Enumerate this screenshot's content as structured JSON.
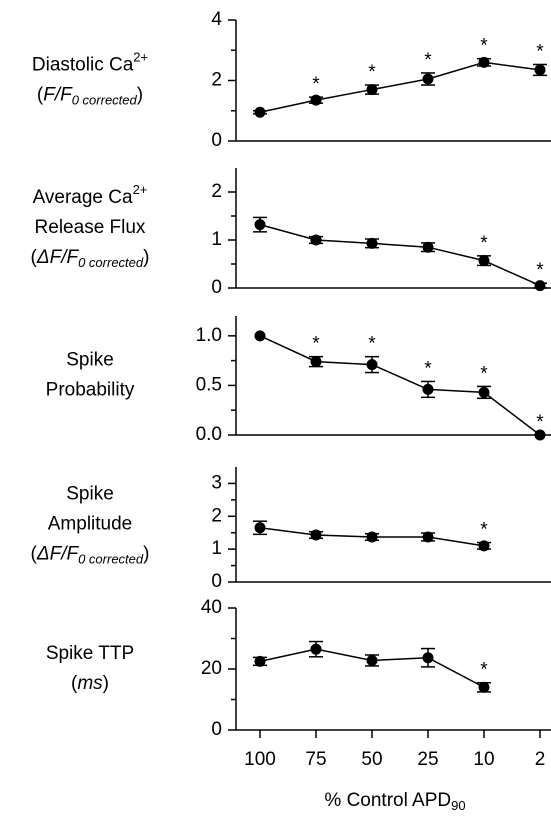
{
  "chart_data": [
    {
      "type": "line",
      "color": "#000000",
      "ylabel": [
        [
          {
            "text": "Diastolic Ca"
          },
          {
            "text": "2+",
            "style": "sup"
          }
        ],
        [
          {
            "text": "("
          },
          {
            "text": "F/F",
            "style": "italic"
          },
          {
            "text": "0 corrected",
            "style": "sub-italic"
          },
          {
            "text": ")"
          }
        ]
      ],
      "categories": [
        "100",
        "75",
        "50",
        "25",
        "10",
        "2"
      ],
      "values": [
        0.95,
        1.35,
        1.7,
        2.05,
        2.6,
        2.35
      ],
      "errors": [
        0.05,
        0.1,
        0.15,
        0.2,
        0.12,
        0.18
      ],
      "annotations": [
        null,
        "*",
        "*",
        "*",
        "*",
        "*"
      ],
      "ylim": [
        0,
        4
      ],
      "yticks": [
        0,
        2,
        4
      ],
      "yminor": [
        1,
        3
      ]
    },
    {
      "type": "line",
      "color": "#000000",
      "ylabel": [
        [
          {
            "text": "Average Ca"
          },
          {
            "text": "2+",
            "style": "sup"
          }
        ],
        [
          {
            "text": "Release Flux"
          }
        ],
        [
          {
            "text": "("
          },
          {
            "text": "ΔF/F",
            "style": "italic"
          },
          {
            "text": "0 corrected",
            "style": "sub-italic"
          },
          {
            "text": ")"
          }
        ]
      ],
      "categories": [
        "100",
        "75",
        "50",
        "25",
        "10",
        "2"
      ],
      "values": [
        1.32,
        1.0,
        0.93,
        0.85,
        0.57,
        0.05
      ],
      "errors": [
        0.15,
        0.07,
        0.09,
        0.09,
        0.1,
        0.05
      ],
      "annotations": [
        null,
        null,
        null,
        null,
        "*",
        "*"
      ],
      "ylim": [
        0,
        2.5
      ],
      "yticks": [
        0,
        1,
        2
      ],
      "yminor": [
        0.5,
        1.5
      ]
    },
    {
      "type": "line",
      "color": "#000000",
      "ylabel": [
        [
          {
            "text": "Spike"
          }
        ],
        [
          {
            "text": "Probability"
          }
        ]
      ],
      "categories": [
        "100",
        "75",
        "50",
        "25",
        "10",
        "2"
      ],
      "values": [
        1.0,
        0.74,
        0.71,
        0.46,
        0.43,
        0.0
      ],
      "errors": [
        0,
        0.05,
        0.08,
        0.08,
        0.06,
        0
      ],
      "annotations": [
        null,
        "*",
        "*",
        "*",
        "*",
        "*"
      ],
      "ylim": [
        0,
        1.2
      ],
      "yticks": [
        {
          "value": 0,
          "label": "0.0"
        },
        {
          "value": 0.5,
          "label": "0.5"
        },
        {
          "value": 1,
          "label": "1.0"
        }
      ],
      "yminor": [
        0.25,
        0.75
      ]
    },
    {
      "type": "line",
      "color": "#000000",
      "ylabel": [
        [
          {
            "text": "Spike"
          }
        ],
        [
          {
            "text": "Amplitude"
          }
        ],
        [
          {
            "text": "("
          },
          {
            "text": "ΔF/F",
            "style": "italic"
          },
          {
            "text": "0 corrected",
            "style": "sub-italic"
          },
          {
            "text": ")"
          }
        ]
      ],
      "categories": [
        "100",
        "75",
        "50",
        "25",
        "10",
        "2"
      ],
      "values": [
        1.65,
        1.43,
        1.37,
        1.37,
        1.1,
        null
      ],
      "errors": [
        0.2,
        0.1,
        0.1,
        0.12,
        0.1,
        null
      ],
      "annotations": [
        null,
        null,
        null,
        null,
        "*",
        null
      ],
      "ylim": [
        0,
        3.5
      ],
      "yticks": [
        0,
        1,
        2,
        3
      ],
      "yminor": [
        0.5,
        1.5,
        2.5
      ]
    },
    {
      "type": "line",
      "color": "#000000",
      "ylabel": [
        [
          {
            "text": "Spike TTP"
          }
        ],
        [
          {
            "text": "("
          },
          {
            "text": "ms",
            "style": "italic"
          },
          {
            "text": ")"
          }
        ]
      ],
      "categories": [
        "100",
        "75",
        "50",
        "25",
        "10",
        "2"
      ],
      "values": [
        22.5,
        26.5,
        22.8,
        23.7,
        14,
        null
      ],
      "errors": [
        1.3,
        2.5,
        1.8,
        3,
        1.5,
        null
      ],
      "annotations": [
        null,
        null,
        null,
        null,
        "*",
        null
      ],
      "ylim": [
        0,
        40
      ],
      "yticks": [
        0,
        20,
        40
      ],
      "yminor": [
        10,
        30
      ],
      "xlabel": [
        {
          "text": "% Control APD"
        },
        {
          "text": "90",
          "style": "sub"
        }
      ]
    }
  ]
}
